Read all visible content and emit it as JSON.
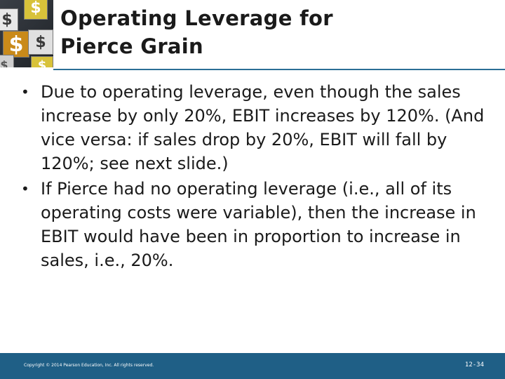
{
  "slide": {
    "title_line1": "Operating Leverage for",
    "title_line2": "Pierce Grain",
    "bullets": [
      "Due to operating leverage, even though the sales increase by only 20%, EBIT increases by 120%. (And vice versa: if sales drop by 20%, EBIT will fall by 120%; see next slide.)",
      "If Pierce had no operating leverage (i.e., all of its operating costs were variable), then the increase in EBIT would have been in proportion to increase in sales, i.e., 20%."
    ],
    "bullet_symbol": "•",
    "logo_symbol": "$"
  },
  "footer": {
    "copyright": "Copyright © 2014 Pearson Education, Inc. All rights reserved.",
    "slide_number": "12-34"
  },
  "colors": {
    "footer_bar": "#1f5f86",
    "title_rule": "#2b6e96",
    "text": "#1a1a1a"
  }
}
